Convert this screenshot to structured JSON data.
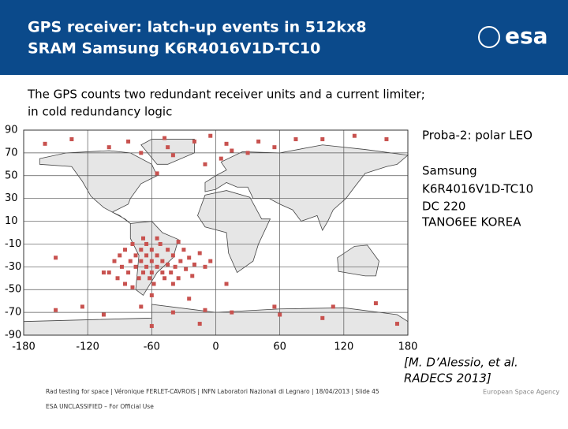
{
  "header": {
    "title_lines": [
      "GPS receiver: latch-up events in 512kx8",
      "SRAM  Samsung K6R4016V1D-TC10"
    ],
    "logo": "esa"
  },
  "intro_lines": [
    "The GPS counts two redundant receiver units and a current limiter;",
    "in cold redundancy logic"
  ],
  "side_notes": [
    "Proba-2: polar LEO",
    "Samsung",
    "K6R4016V1D-TC10",
    "DC 220",
    "TANO6EE KOREA"
  ],
  "citation_lines": [
    "[M. D’Alessio, et al.",
    "RADECS 2013]"
  ],
  "footer": {
    "line1": "Rad testing for space | Véronique FERLET-CAVROIS | INFN Laboratori Nazionali di Legnaro | 18/04/2013 | Slide  45",
    "line2": "ESA UNCLASSIFIED – For Official Use",
    "agency": "European Space Agency"
  },
  "chart_data": {
    "type": "scatter",
    "xlim": [
      -180,
      180
    ],
    "ylim": [
      -90,
      90
    ],
    "xticks": [
      -180,
      -120,
      -60,
      0,
      60,
      120,
      180
    ],
    "yticks": [
      90,
      70,
      50,
      30,
      10,
      -10,
      -30,
      -50,
      -70,
      -90
    ],
    "grid": true,
    "series": [
      {
        "color": "#c8524f",
        "x": [
          -135,
          -82,
          -48,
          -45,
          -20,
          -5,
          10,
          15,
          5,
          30,
          40,
          55,
          75,
          100,
          130,
          -100,
          -70,
          -160,
          -40,
          160,
          -55,
          -10,
          -95,
          -90,
          -88,
          -85,
          -82,
          -80,
          -78,
          -75,
          -75,
          -72,
          -70,
          -70,
          -68,
          -65,
          -65,
          -65,
          -62,
          -60,
          -60,
          -60,
          -58,
          -55,
          -55,
          -52,
          -50,
          -50,
          -48,
          -45,
          -45,
          -42,
          -40,
          -38,
          -35,
          -33,
          -30,
          -28,
          -25,
          -22,
          -20,
          -15,
          -10,
          -5,
          -100,
          -92,
          -85,
          -78,
          -40,
          -68,
          -55,
          -35,
          -150,
          -105,
          -70,
          -40,
          -10,
          -60,
          60,
          55,
          100,
          150,
          170,
          -125,
          15,
          110,
          -15,
          -60,
          -25,
          -150,
          -105,
          10
        ],
        "values": [
          82,
          80,
          83,
          75,
          80,
          85,
          78,
          72,
          65,
          70,
          80,
          75,
          82,
          82,
          85,
          75,
          70,
          78,
          68,
          82,
          52,
          60,
          -25,
          -20,
          -30,
          -15,
          -35,
          -25,
          -10,
          -20,
          -30,
          -40,
          -15,
          -25,
          -35,
          -10,
          -20,
          -30,
          -40,
          -15,
          -25,
          -35,
          -45,
          -20,
          -30,
          -10,
          -25,
          -35,
          -40,
          -15,
          -28,
          -35,
          -20,
          -30,
          -40,
          -25,
          -15,
          -32,
          -22,
          -38,
          -28,
          -18,
          -30,
          -25,
          -35,
          -40,
          -45,
          -48,
          -45,
          -5,
          -5,
          -8,
          -68,
          -72,
          -65,
          -70,
          -68,
          -82,
          -72,
          -65,
          -75,
          -62,
          -80,
          -65,
          -70,
          -65,
          -80,
          -55,
          -58,
          -22,
          -35,
          -45
        ]
      }
    ]
  }
}
